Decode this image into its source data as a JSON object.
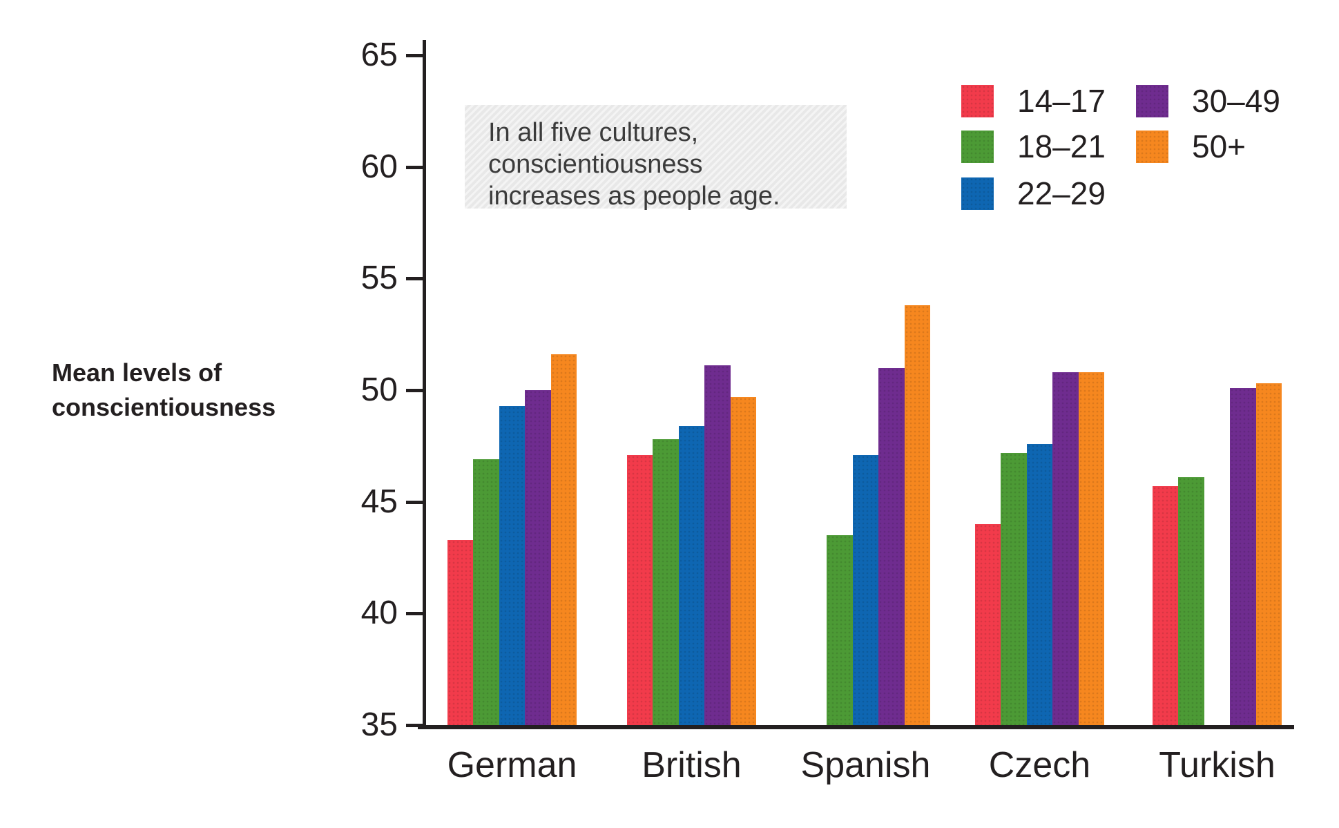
{
  "chart_data": {
    "type": "bar",
    "title": "",
    "ylabel": "Mean levels of\nconscientiousness",
    "xlabel": "",
    "annotation": "In all five cultures,\nconscientiousness\nincreases as people age.",
    "ylim": [
      35,
      65
    ],
    "yticks": [
      35,
      40,
      45,
      50,
      55,
      60,
      65
    ],
    "categories": [
      "German",
      "British",
      "Spanish",
      "Czech",
      "Turkish"
    ],
    "series": [
      {
        "name": "14–17",
        "color": "#F23B4B",
        "values": [
          43.3,
          47.1,
          null,
          44.0,
          45.7
        ]
      },
      {
        "name": "18–21",
        "color": "#4C9A35",
        "values": [
          46.9,
          47.8,
          43.5,
          47.2,
          46.1
        ]
      },
      {
        "name": "22–29",
        "color": "#0E66B2",
        "values": [
          49.3,
          48.4,
          47.1,
          47.6,
          null
        ]
      },
      {
        "name": "30–49",
        "color": "#6F2C8F",
        "values": [
          50.0,
          51.1,
          51.0,
          50.8,
          50.1
        ]
      },
      {
        "name": "50+",
        "color": "#F6871F",
        "values": [
          51.6,
          49.7,
          53.8,
          50.8,
          50.3
        ]
      }
    ],
    "legend_position": "top-right",
    "grid": false
  },
  "colors": {
    "axis": "#231F20",
    "text": "#231F20",
    "annotation_bg": "#E8E8E8"
  }
}
